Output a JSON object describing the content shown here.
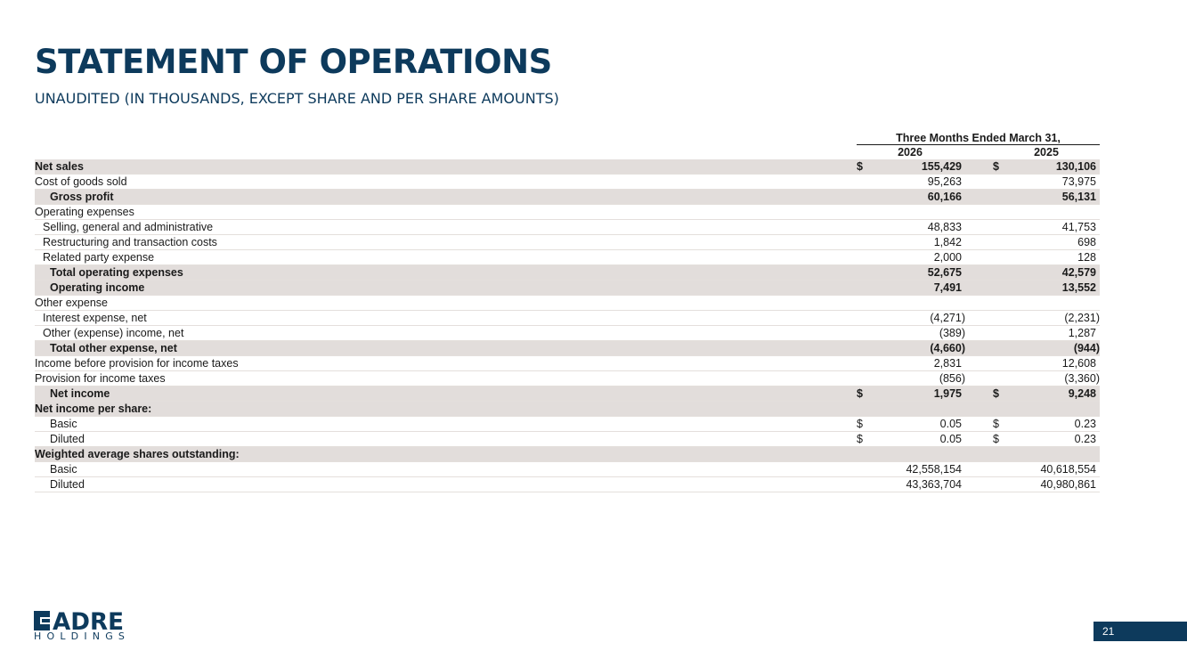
{
  "header": {
    "title": "STATEMENT OF OPERATIONS",
    "subtitle": "UNAUDITED (IN THOUSANDS, EXCEPT SHARE AND PER SHARE AMOUNTS)"
  },
  "table": {
    "period_header": "Three Months Ended March 31,",
    "year_1": "2026",
    "year_2": "2025",
    "rows": [
      {
        "label": "Net sales",
        "sym1": "$",
        "v1": "155,429",
        "sym2": "$",
        "v2": "130,106"
      },
      {
        "label": "Cost of goods sold",
        "sym1": "",
        "v1": "95,263",
        "sym2": "",
        "v2": "73,975"
      },
      {
        "label": "Gross profit",
        "sym1": "",
        "v1": "60,166",
        "sym2": "",
        "v2": "56,131"
      },
      {
        "label": "Operating expenses",
        "sym1": "",
        "v1": "",
        "sym2": "",
        "v2": ""
      },
      {
        "label": "Selling, general and administrative",
        "sym1": "",
        "v1": "48,833",
        "sym2": "",
        "v2": "41,753"
      },
      {
        "label": "Restructuring and transaction costs",
        "sym1": "",
        "v1": "1,842",
        "sym2": "",
        "v2": "698"
      },
      {
        "label": "Related party expense",
        "sym1": "",
        "v1": "2,000",
        "sym2": "",
        "v2": "128"
      },
      {
        "label": "Total operating expenses",
        "sym1": "",
        "v1": "52,675",
        "sym2": "",
        "v2": "42,579"
      },
      {
        "label": "Operating income",
        "sym1": "",
        "v1": "7,491",
        "sym2": "",
        "v2": "13,552"
      },
      {
        "label": "Other expense",
        "sym1": "",
        "v1": "",
        "sym2": "",
        "v2": ""
      },
      {
        "label": "Interest expense, net",
        "sym1": "",
        "v1": "(4,271)",
        "sym2": "",
        "v2": "(2,231)"
      },
      {
        "label": "Other (expense) income, net",
        "sym1": "",
        "v1": "(389)",
        "sym2": "",
        "v2": "1,287"
      },
      {
        "label": "Total other expense, net",
        "sym1": "",
        "v1": "(4,660)",
        "sym2": "",
        "v2": "(944)"
      },
      {
        "label": "Income before provision for income taxes",
        "sym1": "",
        "v1": "2,831",
        "sym2": "",
        "v2": "12,608"
      },
      {
        "label": "Provision for income taxes",
        "sym1": "",
        "v1": "(856)",
        "sym2": "",
        "v2": "(3,360)"
      },
      {
        "label": "Net income",
        "sym1": "$",
        "v1": "1,975",
        "sym2": "$",
        "v2": "9,248"
      },
      {
        "label": "Net income per share:",
        "sym1": "",
        "v1": "",
        "sym2": "",
        "v2": ""
      },
      {
        "label": "Basic",
        "sym1": "$",
        "v1": "0.05",
        "sym2": "$",
        "v2": "0.23"
      },
      {
        "label": "Diluted",
        "sym1": "$",
        "v1": "0.05",
        "sym2": "$",
        "v2": "0.23"
      },
      {
        "label": "Weighted average shares outstanding:",
        "sym1": "",
        "v1": "",
        "sym2": "",
        "v2": ""
      },
      {
        "label": "Basic",
        "sym1": "",
        "v1": "42,558,154",
        "sym2": "",
        "v2": "40,618,554"
      },
      {
        "label": "Diluted",
        "sym1": "",
        "v1": "43,363,704",
        "sym2": "",
        "v2": "40,980,861"
      }
    ]
  },
  "footer": {
    "logo_word": "ADRE",
    "logo_sub": "HOLDINGS",
    "page_number": "21"
  },
  "colors": {
    "brand": "#0d3a5c",
    "row_shade": "#e2dddb"
  }
}
